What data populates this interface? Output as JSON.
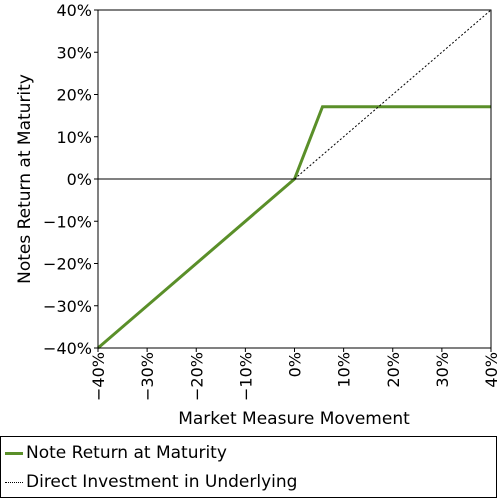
{
  "chart_data": {
    "type": "line",
    "title": "",
    "xlabel": "Market Measure Movement",
    "ylabel": "Notes Return at Maturity",
    "xlim": [
      -40,
      40
    ],
    "ylim": [
      -40,
      40
    ],
    "x_ticks": [
      -40,
      -30,
      -20,
      -10,
      0,
      10,
      20,
      30,
      40
    ],
    "y_ticks": [
      -40,
      -30,
      -20,
      -10,
      0,
      10,
      20,
      30,
      40
    ],
    "x_tick_labels": [
      "−40%",
      "−30%",
      "−20%",
      "−10%",
      "0%",
      "10%",
      "20%",
      "30%",
      "40%"
    ],
    "y_tick_labels": [
      "−40%",
      "−30%",
      "−20%",
      "−10%",
      "0%",
      "10%",
      "20%",
      "30%",
      "40%"
    ],
    "grid": false,
    "legend_placement": "bottom",
    "series": [
      {
        "name": "Note Return at Maturity",
        "color": "#5a8f29",
        "style": "solid",
        "points": [
          [
            -40,
            -40
          ],
          [
            0,
            0
          ],
          [
            5.7,
            17.1
          ],
          [
            40,
            17.1
          ]
        ]
      },
      {
        "name": "Direct Investment in Underlying",
        "color": "#000000",
        "style": "dotted",
        "points": [
          [
            0,
            0
          ],
          [
            40,
            40
          ]
        ]
      }
    ]
  }
}
